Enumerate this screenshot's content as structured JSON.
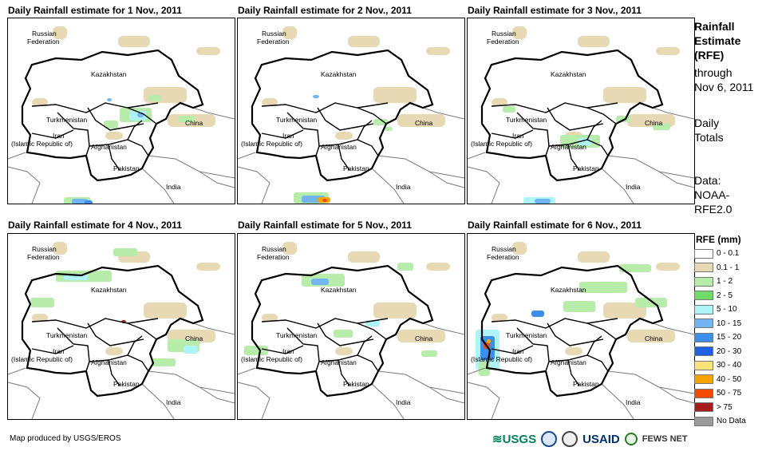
{
  "panels": [
    {
      "title": "Daily Rainfall estimate for 1 Nov., 2011"
    },
    {
      "title": "Daily Rainfall estimate for 2 Nov., 2011"
    },
    {
      "title": "Daily Rainfall estimate for 3 Nov., 2011"
    },
    {
      "title": "Daily Rainfall estimate for 4 Nov., 2011"
    },
    {
      "title": "Daily Rainfall estimate for 5 Nov., 2011"
    },
    {
      "title": "Daily Rainfall estimate for 6 Nov., 2011"
    }
  ],
  "countries": {
    "russia1": "Russian",
    "russia2": "Federation",
    "kazakhstan": "Kazakhstan",
    "turkmenistan": "Turkmenistan",
    "iran1": "Iran",
    "iran2": "(Islamic Republic of)",
    "afghanistan": "Afghanistan",
    "pakistan": "Pakistan",
    "india": "India",
    "china": "China"
  },
  "sidebar": {
    "title1": "Rainfall",
    "title2": "Estimate",
    "title3": "(RFE)",
    "through": "through",
    "date": "Nov 6, 2011",
    "daily": "Daily",
    "totals": "Totals",
    "data_label": "Data:",
    "data_src1": "NOAA-",
    "data_src2": "RFE2.0"
  },
  "legend": {
    "title": "RFE (mm)",
    "items": [
      {
        "label": "0 - 0.1",
        "color": "#ffffff"
      },
      {
        "label": "0.1 - 1",
        "color": "#e8d9b5"
      },
      {
        "label": "1 - 2",
        "color": "#b7ecab"
      },
      {
        "label": "2 - 5",
        "color": "#6fdc6a"
      },
      {
        "label": "5 - 10",
        "color": "#aef3f6"
      },
      {
        "label": "10 - 15",
        "color": "#73b4f2"
      },
      {
        "label": "15 - 20",
        "color": "#3d8ee8"
      },
      {
        "label": "20 - 30",
        "color": "#1f60e0"
      },
      {
        "label": "30 - 40",
        "color": "#fbe27a"
      },
      {
        "label": "40 - 50",
        "color": "#f5a400"
      },
      {
        "label": "50 - 75",
        "color": "#f24a00"
      },
      {
        "label": "> 75",
        "color": "#a51d1d"
      },
      {
        "label": "No Data",
        "color": "#9a9a9a"
      }
    ]
  },
  "footer": {
    "credit": "Map produced by USGS/EROS",
    "logo_usgs": "≋USGS",
    "logo_usaid": "USAID",
    "logo_fews": "FEWS NET"
  }
}
